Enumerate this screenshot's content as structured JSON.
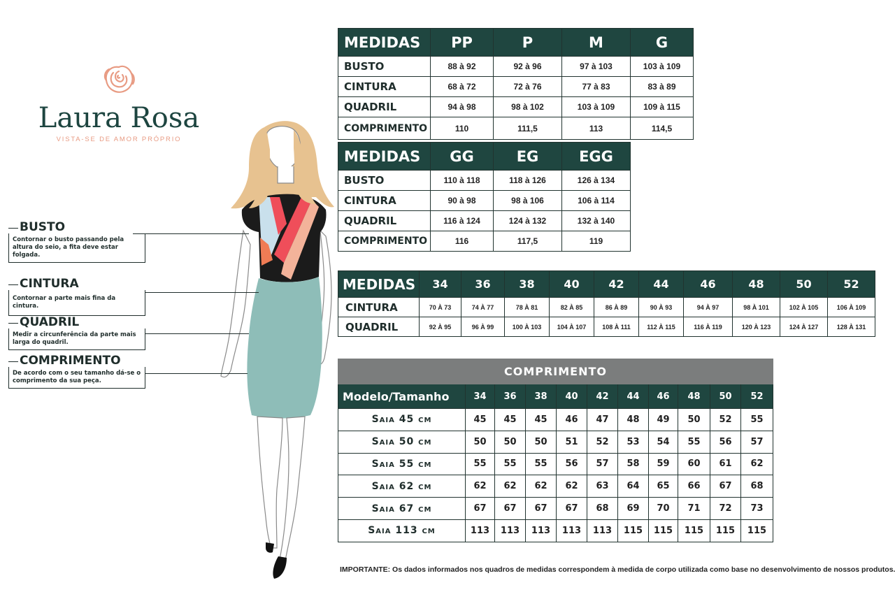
{
  "brand": {
    "name": "Laura Rosa",
    "tagline": "VISTA-SE DE AMOR PRÓPRIO",
    "icon": "rose-icon",
    "colors": {
      "primary": "#1d4540",
      "accent": "#e89b83"
    }
  },
  "callouts": [
    {
      "title": "BUSTO",
      "text": "Contornar o busto passando pela altura do seio, a fita deve estar folgada."
    },
    {
      "title": "CINTURA",
      "text": "Contornar a parte mais fina da cintura."
    },
    {
      "title": "QUADRIL",
      "text": "Medir a circunferência da parte mais larga do quadril."
    },
    {
      "title": "COMPRIMENTO",
      "text": "De acordo com o seu tamanho dá-se o comprimento da sua peça."
    }
  ],
  "table_letters_1": {
    "header": [
      "MEDIDAS",
      "PP",
      "P",
      "M",
      "G"
    ],
    "rows": [
      [
        "BUSTO",
        "88 à 92",
        "92 à 96",
        "97 à 103",
        "103 à 109"
      ],
      [
        "CINTURA",
        "68 à 72",
        "72 à 76",
        "77 à 83",
        "83 à 89"
      ],
      [
        "QUADRIL",
        "94 à 98",
        "98 à 102",
        "103 à 109",
        "109 à 115"
      ],
      [
        "COMPRIMENTO",
        "110",
        "111,5",
        "113",
        "114,5"
      ]
    ]
  },
  "table_letters_2": {
    "header": [
      "MEDIDAS",
      "GG",
      "EG",
      "EGG"
    ],
    "rows": [
      [
        "BUSTO",
        "110 à 118",
        "118 à 126",
        "126 à 134"
      ],
      [
        "CINTURA",
        "90 à 98",
        "98 à 106",
        "106 à 114"
      ],
      [
        "QUADRIL",
        "116 à 124",
        "124 à 132",
        "132 à 140"
      ],
      [
        "COMPRIMENTO",
        "116",
        "117,5",
        "119"
      ]
    ]
  },
  "table_numbers": {
    "header": [
      "MEDIDAS",
      "34",
      "36",
      "38",
      "40",
      "42",
      "44",
      "46",
      "48",
      "50",
      "52"
    ],
    "rows": [
      [
        "CINTURA",
        "70 À 73",
        "74 À 77",
        "78 À 81",
        "82 À 85",
        "86 À 89",
        "90 À 93",
        "94 À 97",
        "98 À 101",
        "102 À 105",
        "106 À 109"
      ],
      [
        "QUADRIL",
        "92 À 95",
        "96 À 99",
        "100 À 103",
        "104 À 107",
        "108 À 111",
        "112 À 115",
        "116 À 119",
        "120 À 123",
        "124 À 127",
        "128 À 131"
      ]
    ]
  },
  "table_length": {
    "title": "COMPRIMENTO",
    "header": [
      "Modelo/Tamanho",
      "34",
      "36",
      "38",
      "40",
      "42",
      "44",
      "46",
      "48",
      "50",
      "52"
    ],
    "rows": [
      [
        "Saia 45 cm",
        "45",
        "45",
        "45",
        "46",
        "47",
        "48",
        "49",
        "50",
        "52",
        "55"
      ],
      [
        "Saia 50 cm",
        "50",
        "50",
        "50",
        "51",
        "52",
        "53",
        "54",
        "55",
        "56",
        "57"
      ],
      [
        "Saia 55 cm",
        "55",
        "55",
        "55",
        "56",
        "57",
        "58",
        "59",
        "60",
        "61",
        "62"
      ],
      [
        "Saia 62 cm",
        "62",
        "62",
        "62",
        "62",
        "63",
        "64",
        "65",
        "66",
        "67",
        "68"
      ],
      [
        "Saia 67 cm",
        "67",
        "67",
        "67",
        "67",
        "68",
        "69",
        "70",
        "71",
        "72",
        "73"
      ],
      [
        "Saia 113 cm",
        "113",
        "113",
        "113",
        "113",
        "113",
        "115",
        "115",
        "115",
        "115",
        "115"
      ]
    ]
  },
  "note": {
    "label": "IMPORTANTE:",
    "text": " Os dados informados nos quadros de medidas correspondem à medida de corpo utilizada como base no desenvolvimento de nossos produtos."
  }
}
